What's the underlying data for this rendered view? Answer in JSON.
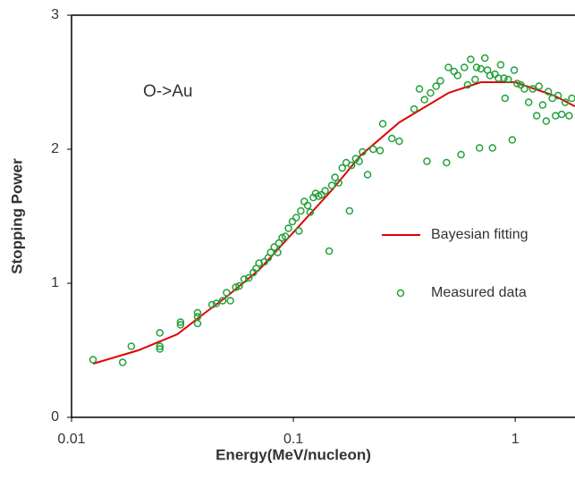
{
  "chart_data": {
    "type": "scatter",
    "annotation": "O->Au",
    "x_label": "Energy(MeV/nucleon)",
    "y_label": "Stopping Power",
    "xscale": "log",
    "xlim": [
      0.01,
      1.86
    ],
    "ylim": [
      0,
      3
    ],
    "xticks": [
      0.01,
      0.1,
      1
    ],
    "yticks": [
      0,
      1,
      2,
      3
    ],
    "legend": "right",
    "series": [
      {
        "name": "Bayesian fitting",
        "type": "line",
        "color": "#e00000",
        "x": [
          0.0125,
          0.02,
          0.03,
          0.04,
          0.05,
          0.07,
          0.1,
          0.15,
          0.2,
          0.3,
          0.5,
          0.7,
          1.0,
          1.5,
          1.86
        ],
        "values": [
          0.4,
          0.5,
          0.62,
          0.78,
          0.9,
          1.1,
          1.38,
          1.7,
          1.95,
          2.2,
          2.42,
          2.5,
          2.5,
          2.4,
          2.32
        ]
      },
      {
        "name": "Measured data",
        "type": "scatter",
        "color": "#22a03a",
        "x": [
          0.0125,
          0.017,
          0.0186,
          0.025,
          0.025,
          0.025,
          0.031,
          0.031,
          0.037,
          0.037,
          0.037,
          0.043,
          0.045,
          0.048,
          0.05,
          0.052,
          0.055,
          0.057,
          0.06,
          0.063,
          0.066,
          0.068,
          0.07,
          0.074,
          0.077,
          0.079,
          0.082,
          0.085,
          0.086,
          0.089,
          0.092,
          0.095,
          0.099,
          0.103,
          0.106,
          0.108,
          0.112,
          0.116,
          0.119,
          0.123,
          0.126,
          0.13,
          0.134,
          0.139,
          0.145,
          0.149,
          0.154,
          0.16,
          0.166,
          0.173,
          0.179,
          0.183,
          0.191,
          0.198,
          0.205,
          0.216,
          0.229,
          0.246,
          0.253,
          0.278,
          0.3,
          0.35,
          0.37,
          0.39,
          0.4,
          0.415,
          0.44,
          0.46,
          0.49,
          0.5,
          0.53,
          0.55,
          0.57,
          0.59,
          0.61,
          0.63,
          0.66,
          0.67,
          0.69,
          0.7,
          0.73,
          0.75,
          0.77,
          0.79,
          0.81,
          0.84,
          0.86,
          0.89,
          0.9,
          0.93,
          0.97,
          0.99,
          1.02,
          1.06,
          1.1,
          1.15,
          1.2,
          1.25,
          1.28,
          1.33,
          1.38,
          1.41,
          1.47,
          1.52,
          1.56,
          1.62,
          1.68,
          1.75,
          1.8
        ],
        "values": [
          0.43,
          0.41,
          0.53,
          0.63,
          0.53,
          0.51,
          0.71,
          0.69,
          0.78,
          0.75,
          0.7,
          0.84,
          0.85,
          0.87,
          0.93,
          0.87,
          0.97,
          0.98,
          1.03,
          1.04,
          1.08,
          1.11,
          1.15,
          1.16,
          1.19,
          1.23,
          1.27,
          1.23,
          1.3,
          1.34,
          1.35,
          1.41,
          1.46,
          1.49,
          1.39,
          1.54,
          1.61,
          1.58,
          1.53,
          1.64,
          1.67,
          1.65,
          1.66,
          1.69,
          1.24,
          1.73,
          1.79,
          1.75,
          1.86,
          1.9,
          1.54,
          1.88,
          1.93,
          1.91,
          1.98,
          1.81,
          2.0,
          1.99,
          2.19,
          2.08,
          2.06,
          2.3,
          2.45,
          2.37,
          1.91,
          2.42,
          2.47,
          2.51,
          1.9,
          2.61,
          2.58,
          2.55,
          1.96,
          2.61,
          2.48,
          2.67,
          2.52,
          2.61,
          2.01,
          2.6,
          2.68,
          2.59,
          2.55,
          2.01,
          2.56,
          2.53,
          2.63,
          2.53,
          2.38,
          2.52,
          2.07,
          2.59,
          2.49,
          2.48,
          2.45,
          2.35,
          2.45,
          2.25,
          2.47,
          2.33,
          2.21,
          2.43,
          2.38,
          2.25,
          2.4,
          2.26,
          2.35,
          2.25,
          2.38
        ]
      }
    ]
  }
}
